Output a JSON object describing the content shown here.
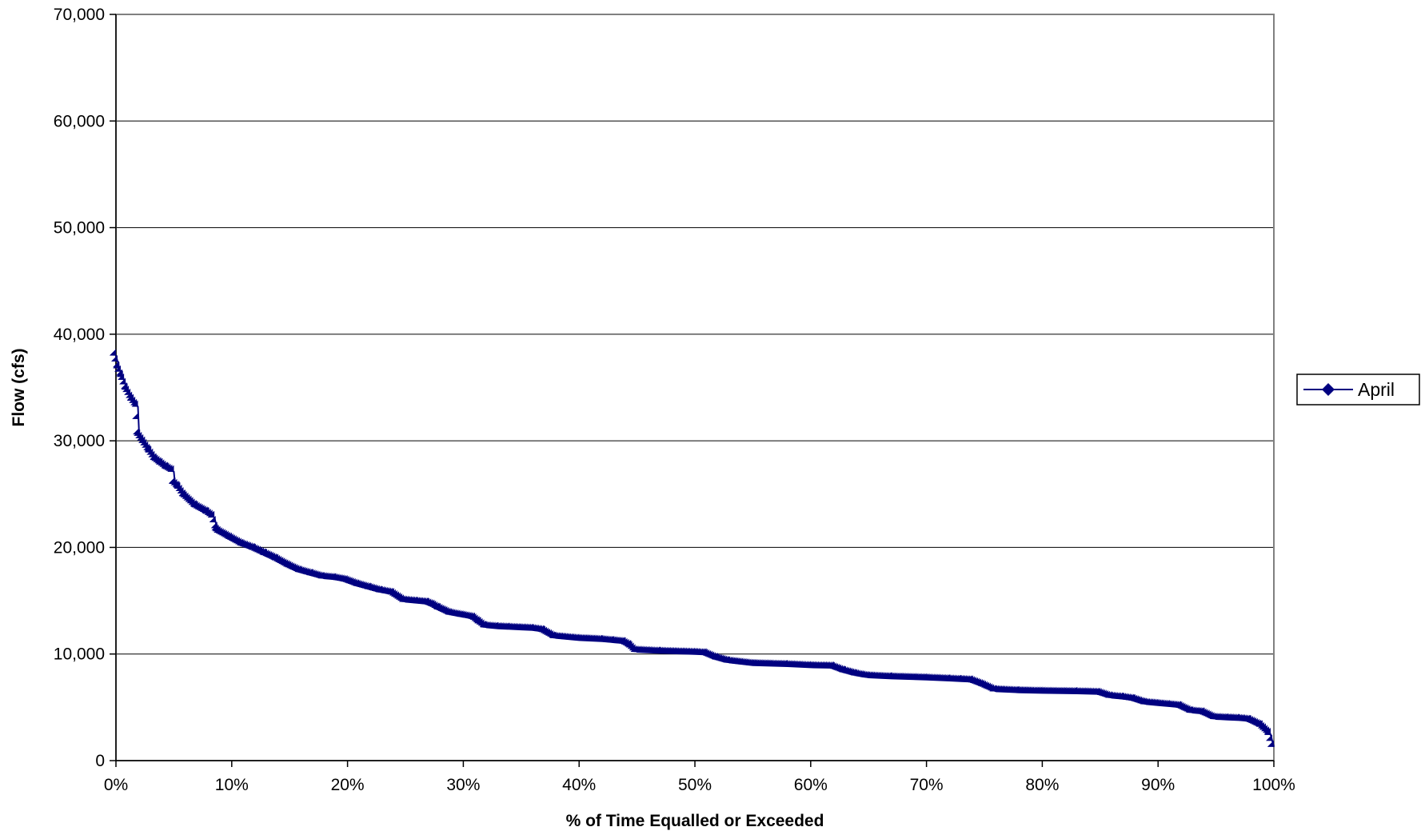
{
  "chart_data": {
    "type": "line",
    "title": "",
    "xlabel": "% of Time Equalled or Exceeded",
    "ylabel": "Flow (cfs)",
    "xlim": [
      0,
      100
    ],
    "ylim": [
      0,
      70000
    ],
    "x_ticks": [
      0,
      10,
      20,
      30,
      40,
      50,
      60,
      70,
      80,
      90,
      100
    ],
    "x_tick_labels": [
      "0%",
      "10%",
      "20%",
      "30%",
      "40%",
      "50%",
      "60%",
      "70%",
      "80%",
      "90%",
      "100%"
    ],
    "y_ticks": [
      0,
      10000,
      20000,
      30000,
      40000,
      50000,
      60000,
      70000
    ],
    "y_tick_labels": [
      "0",
      "10,000",
      "20,000",
      "30,000",
      "40,000",
      "50,000",
      "60,000",
      "70,000"
    ],
    "grid": "horizontal",
    "legend_position": "right",
    "series": [
      {
        "name": "April",
        "color": "#000080",
        "marker": "diamond",
        "x": [
          0,
          0.3,
          0.6,
          1,
          1.5,
          1.9,
          2,
          2.5,
          3,
          3.5,
          4,
          4.5,
          5,
          5.1,
          5.5,
          6,
          7,
          8,
          8.5,
          8.8,
          9,
          10,
          11,
          12,
          13,
          14,
          15,
          16,
          17,
          18,
          19,
          20,
          21,
          22,
          23,
          24,
          25,
          26,
          27,
          27.5,
          28,
          29,
          30,
          31,
          31.5,
          32,
          33,
          34,
          35,
          36,
          37,
          38,
          40,
          42,
          43,
          44,
          44.5,
          45,
          47,
          50,
          51,
          52,
          53,
          55,
          58,
          60,
          62,
          63,
          64,
          65,
          67,
          70,
          72,
          73,
          74,
          75,
          76,
          78,
          80,
          83,
          85,
          86,
          87,
          88,
          89,
          90,
          91,
          92,
          93,
          94,
          95,
          96,
          97,
          97.5,
          98,
          99,
          99.3,
          99.7,
          100
        ],
        "y": [
          38000,
          36800,
          36000,
          34800,
          33800,
          33200,
          30600,
          29800,
          29000,
          28200,
          27800,
          27400,
          27100,
          26000,
          25600,
          24800,
          23800,
          23200,
          22800,
          21600,
          21400,
          20800,
          20200,
          19800,
          19300,
          18800,
          18200,
          17700,
          17400,
          17100,
          17000,
          16800,
          16400,
          16100,
          15800,
          15600,
          14900,
          14800,
          14700,
          14500,
          14200,
          13700,
          13500,
          13300,
          12900,
          12500,
          12400,
          12350,
          12300,
          12250,
          12100,
          11500,
          11300,
          11200,
          11100,
          11000,
          10700,
          10200,
          10100,
          10000,
          9950,
          9500,
          9200,
          8950,
          8850,
          8750,
          8700,
          8300,
          8000,
          7800,
          7700,
          7600,
          7500,
          7450,
          7400,
          7000,
          6500,
          6400,
          6350,
          6300,
          6250,
          5900,
          5800,
          5650,
          5300,
          5200,
          5100,
          5000,
          4500,
          4400,
          3900,
          3850,
          3800,
          3750,
          3700,
          3200,
          2900,
          2500,
          1300
        ]
      }
    ]
  }
}
